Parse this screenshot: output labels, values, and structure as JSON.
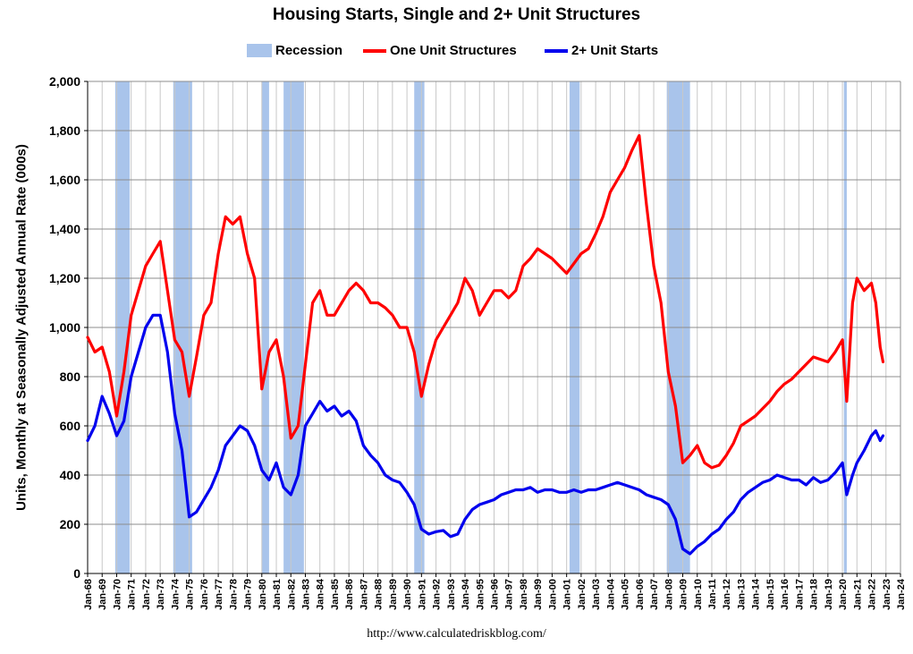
{
  "title": "Housing Starts, Single and 2+ Unit Structures",
  "source": "http://www.calculatedriskblog.com/",
  "chart_data": {
    "type": "line",
    "title": "Housing Starts, Single and 2+ Unit Structures",
    "xlabel": "",
    "ylabel": "Units, Monthly at Seasonally Adjusted Annual Rate (000s)",
    "xlim": [
      1968.0,
      2024.0
    ],
    "ylim": [
      0,
      2000
    ],
    "y_ticks": [
      "0",
      "200",
      "400",
      "600",
      "800",
      "1,000",
      "1,200",
      "1,400",
      "1,600",
      "1,800",
      "2,000"
    ],
    "x_ticks": [
      "Jan-68",
      "Jan-69",
      "Jan-70",
      "Jan-71",
      "Jan-72",
      "Jan-73",
      "Jan-74",
      "Jan-75",
      "Jan-76",
      "Jan-77",
      "Jan-78",
      "Jan-79",
      "Jan-80",
      "Jan-81",
      "Jan-82",
      "Jan-83",
      "Jan-84",
      "Jan-85",
      "Jan-86",
      "Jan-87",
      "Jan-88",
      "Jan-89",
      "Jan-90",
      "Jan-91",
      "Jan-92",
      "Jan-93",
      "Jan-94",
      "Jan-95",
      "Jan-96",
      "Jan-97",
      "Jan-98",
      "Jan-99",
      "Jan-00",
      "Jan-01",
      "Jan-02",
      "Jan-03",
      "Jan-04",
      "Jan-05",
      "Jan-06",
      "Jan-07",
      "Jan-08",
      "Jan-09",
      "Jan-10",
      "Jan-11",
      "Jan-12",
      "Jan-13",
      "Jan-14",
      "Jan-15",
      "Jan-16",
      "Jan-17",
      "Jan-18",
      "Jan-19",
      "Jan-20",
      "Jan-21",
      "Jan-22",
      "Jan-23",
      "Jan-24"
    ],
    "grid": true,
    "legend_position": "top",
    "recession_name": "Recession",
    "recession_color": "#a9c4eb",
    "recessions": [
      [
        1969.9,
        1970.9
      ],
      [
        1973.9,
        1975.2
      ],
      [
        1980.0,
        1980.5
      ],
      [
        1981.5,
        1982.9
      ],
      [
        1990.5,
        1991.2
      ],
      [
        2001.2,
        2001.9
      ],
      [
        2007.9,
        2009.5
      ],
      [
        2020.1,
        2020.3
      ]
    ],
    "series": [
      {
        "name": "One Unit Structures",
        "color": "#ff0000",
        "points": [
          [
            1968.0,
            960
          ],
          [
            1968.5,
            900
          ],
          [
            1969.0,
            920
          ],
          [
            1969.5,
            820
          ],
          [
            1970.0,
            640
          ],
          [
            1970.5,
            820
          ],
          [
            1971.0,
            1050
          ],
          [
            1971.5,
            1150
          ],
          [
            1972.0,
            1250
          ],
          [
            1972.5,
            1300
          ],
          [
            1973.0,
            1350
          ],
          [
            1973.5,
            1150
          ],
          [
            1974.0,
            950
          ],
          [
            1974.5,
            900
          ],
          [
            1975.0,
            720
          ],
          [
            1975.5,
            880
          ],
          [
            1976.0,
            1050
          ],
          [
            1976.5,
            1100
          ],
          [
            1977.0,
            1300
          ],
          [
            1977.5,
            1450
          ],
          [
            1978.0,
            1420
          ],
          [
            1978.5,
            1450
          ],
          [
            1979.0,
            1300
          ],
          [
            1979.5,
            1200
          ],
          [
            1980.0,
            750
          ],
          [
            1980.5,
            900
          ],
          [
            1981.0,
            950
          ],
          [
            1981.5,
            800
          ],
          [
            1982.0,
            550
          ],
          [
            1982.5,
            600
          ],
          [
            1983.0,
            850
          ],
          [
            1983.5,
            1100
          ],
          [
            1984.0,
            1150
          ],
          [
            1984.5,
            1050
          ],
          [
            1985.0,
            1050
          ],
          [
            1985.5,
            1100
          ],
          [
            1986.0,
            1150
          ],
          [
            1986.5,
            1180
          ],
          [
            1987.0,
            1150
          ],
          [
            1987.5,
            1100
          ],
          [
            1988.0,
            1100
          ],
          [
            1988.5,
            1080
          ],
          [
            1989.0,
            1050
          ],
          [
            1989.5,
            1000
          ],
          [
            1990.0,
            1000
          ],
          [
            1990.5,
            900
          ],
          [
            1991.0,
            720
          ],
          [
            1991.5,
            850
          ],
          [
            1992.0,
            950
          ],
          [
            1992.5,
            1000
          ],
          [
            1993.0,
            1050
          ],
          [
            1993.5,
            1100
          ],
          [
            1994.0,
            1200
          ],
          [
            1994.5,
            1150
          ],
          [
            1995.0,
            1050
          ],
          [
            1995.5,
            1100
          ],
          [
            1996.0,
            1150
          ],
          [
            1996.5,
            1150
          ],
          [
            1997.0,
            1120
          ],
          [
            1997.5,
            1150
          ],
          [
            1998.0,
            1250
          ],
          [
            1998.5,
            1280
          ],
          [
            1999.0,
            1320
          ],
          [
            1999.5,
            1300
          ],
          [
            2000.0,
            1280
          ],
          [
            2000.5,
            1250
          ],
          [
            2001.0,
            1220
          ],
          [
            2001.5,
            1260
          ],
          [
            2002.0,
            1300
          ],
          [
            2002.5,
            1320
          ],
          [
            2003.0,
            1380
          ],
          [
            2003.5,
            1450
          ],
          [
            2004.0,
            1550
          ],
          [
            2004.5,
            1600
          ],
          [
            2005.0,
            1650
          ],
          [
            2005.5,
            1720
          ],
          [
            2006.0,
            1780
          ],
          [
            2006.5,
            1500
          ],
          [
            2007.0,
            1250
          ],
          [
            2007.5,
            1100
          ],
          [
            2008.0,
            820
          ],
          [
            2008.5,
            680
          ],
          [
            2009.0,
            450
          ],
          [
            2009.5,
            480
          ],
          [
            2010.0,
            520
          ],
          [
            2010.5,
            450
          ],
          [
            2011.0,
            430
          ],
          [
            2011.5,
            440
          ],
          [
            2012.0,
            480
          ],
          [
            2012.5,
            530
          ],
          [
            2013.0,
            600
          ],
          [
            2013.5,
            620
          ],
          [
            2014.0,
            640
          ],
          [
            2014.5,
            670
          ],
          [
            2015.0,
            700
          ],
          [
            2015.5,
            740
          ],
          [
            2016.0,
            770
          ],
          [
            2016.5,
            790
          ],
          [
            2017.0,
            820
          ],
          [
            2017.5,
            850
          ],
          [
            2018.0,
            880
          ],
          [
            2018.5,
            870
          ],
          [
            2019.0,
            860
          ],
          [
            2019.5,
            900
          ],
          [
            2020.0,
            950
          ],
          [
            2020.3,
            700
          ],
          [
            2020.7,
            1100
          ],
          [
            2021.0,
            1200
          ],
          [
            2021.5,
            1150
          ],
          [
            2022.0,
            1180
          ],
          [
            2022.3,
            1100
          ],
          [
            2022.6,
            920
          ],
          [
            2022.8,
            860
          ]
        ]
      },
      {
        "name": "2+ Unit Starts",
        "color": "#0000ee",
        "points": [
          [
            1968.0,
            540
          ],
          [
            1968.5,
            600
          ],
          [
            1969.0,
            720
          ],
          [
            1969.5,
            650
          ],
          [
            1970.0,
            560
          ],
          [
            1970.5,
            620
          ],
          [
            1971.0,
            800
          ],
          [
            1971.5,
            900
          ],
          [
            1972.0,
            1000
          ],
          [
            1972.5,
            1050
          ],
          [
            1973.0,
            1050
          ],
          [
            1973.5,
            900
          ],
          [
            1974.0,
            650
          ],
          [
            1974.5,
            500
          ],
          [
            1975.0,
            230
          ],
          [
            1975.5,
            250
          ],
          [
            1976.0,
            300
          ],
          [
            1976.5,
            350
          ],
          [
            1977.0,
            420
          ],
          [
            1977.5,
            520
          ],
          [
            1978.0,
            560
          ],
          [
            1978.5,
            600
          ],
          [
            1979.0,
            580
          ],
          [
            1979.5,
            520
          ],
          [
            1980.0,
            420
          ],
          [
            1980.5,
            380
          ],
          [
            1981.0,
            450
          ],
          [
            1981.5,
            350
          ],
          [
            1982.0,
            320
          ],
          [
            1982.5,
            400
          ],
          [
            1983.0,
            600
          ],
          [
            1983.5,
            650
          ],
          [
            1984.0,
            700
          ],
          [
            1984.5,
            660
          ],
          [
            1985.0,
            680
          ],
          [
            1985.5,
            640
          ],
          [
            1986.0,
            660
          ],
          [
            1986.5,
            620
          ],
          [
            1987.0,
            520
          ],
          [
            1987.5,
            480
          ],
          [
            1988.0,
            450
          ],
          [
            1988.5,
            400
          ],
          [
            1989.0,
            380
          ],
          [
            1989.5,
            370
          ],
          [
            1990.0,
            330
          ],
          [
            1990.5,
            280
          ],
          [
            1991.0,
            180
          ],
          [
            1991.5,
            160
          ],
          [
            1992.0,
            170
          ],
          [
            1992.5,
            175
          ],
          [
            1993.0,
            150
          ],
          [
            1993.5,
            160
          ],
          [
            1994.0,
            220
          ],
          [
            1994.5,
            260
          ],
          [
            1995.0,
            280
          ],
          [
            1995.5,
            290
          ],
          [
            1996.0,
            300
          ],
          [
            1996.5,
            320
          ],
          [
            1997.0,
            330
          ],
          [
            1997.5,
            340
          ],
          [
            1998.0,
            340
          ],
          [
            1998.5,
            350
          ],
          [
            1999.0,
            330
          ],
          [
            1999.5,
            340
          ],
          [
            2000.0,
            340
          ],
          [
            2000.5,
            330
          ],
          [
            2001.0,
            330
          ],
          [
            2001.5,
            340
          ],
          [
            2002.0,
            330
          ],
          [
            2002.5,
            340
          ],
          [
            2003.0,
            340
          ],
          [
            2003.5,
            350
          ],
          [
            2004.0,
            360
          ],
          [
            2004.5,
            370
          ],
          [
            2005.0,
            360
          ],
          [
            2005.5,
            350
          ],
          [
            2006.0,
            340
          ],
          [
            2006.5,
            320
          ],
          [
            2007.0,
            310
          ],
          [
            2007.5,
            300
          ],
          [
            2008.0,
            280
          ],
          [
            2008.5,
            220
          ],
          [
            2009.0,
            100
          ],
          [
            2009.5,
            80
          ],
          [
            2010.0,
            110
          ],
          [
            2010.5,
            130
          ],
          [
            2011.0,
            160
          ],
          [
            2011.5,
            180
          ],
          [
            2012.0,
            220
          ],
          [
            2012.5,
            250
          ],
          [
            2013.0,
            300
          ],
          [
            2013.5,
            330
          ],
          [
            2014.0,
            350
          ],
          [
            2014.5,
            370
          ],
          [
            2015.0,
            380
          ],
          [
            2015.5,
            400
          ],
          [
            2016.0,
            390
          ],
          [
            2016.5,
            380
          ],
          [
            2017.0,
            380
          ],
          [
            2017.5,
            360
          ],
          [
            2018.0,
            390
          ],
          [
            2018.5,
            370
          ],
          [
            2019.0,
            380
          ],
          [
            2019.5,
            410
          ],
          [
            2020.0,
            450
          ],
          [
            2020.3,
            320
          ],
          [
            2020.7,
            400
          ],
          [
            2021.0,
            450
          ],
          [
            2021.5,
            500
          ],
          [
            2022.0,
            560
          ],
          [
            2022.3,
            580
          ],
          [
            2022.6,
            540
          ],
          [
            2022.8,
            560
          ]
        ]
      }
    ]
  }
}
